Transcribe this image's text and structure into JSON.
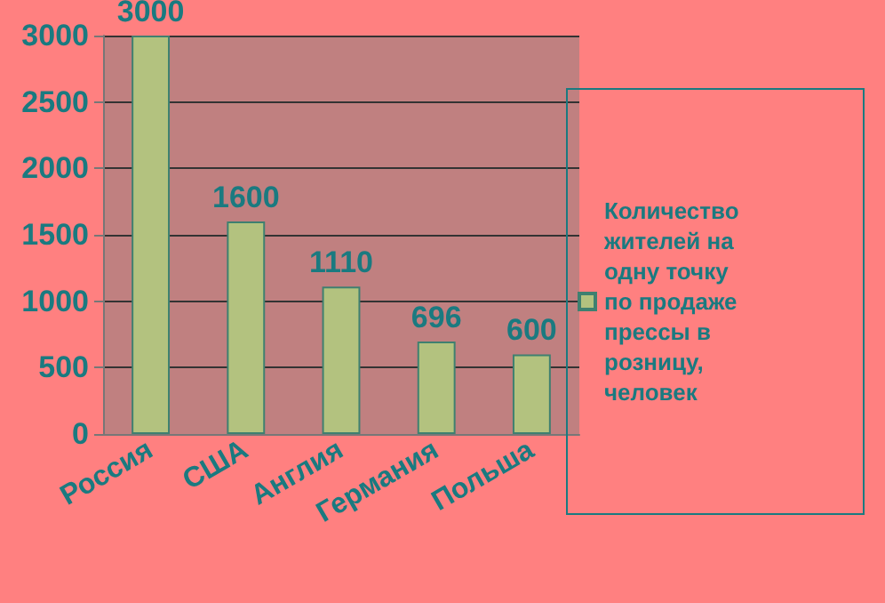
{
  "chart_data": {
    "type": "bar",
    "categories": [
      "Россия",
      "США",
      "Англия",
      "Германия",
      "Польша"
    ],
    "series": [
      {
        "name": "Количество жителей на одну точку по продаже прессы в розницу, человек",
        "color": "#b3c27f",
        "values": [
          3000,
          1600,
          1110,
          696,
          600
        ]
      }
    ],
    "ylim": [
      0,
      3000
    ],
    "yticks": [
      0,
      500,
      1000,
      1500,
      2000,
      2500,
      3000
    ],
    "grid": "y",
    "legend": "right",
    "data_labels": true
  }
}
